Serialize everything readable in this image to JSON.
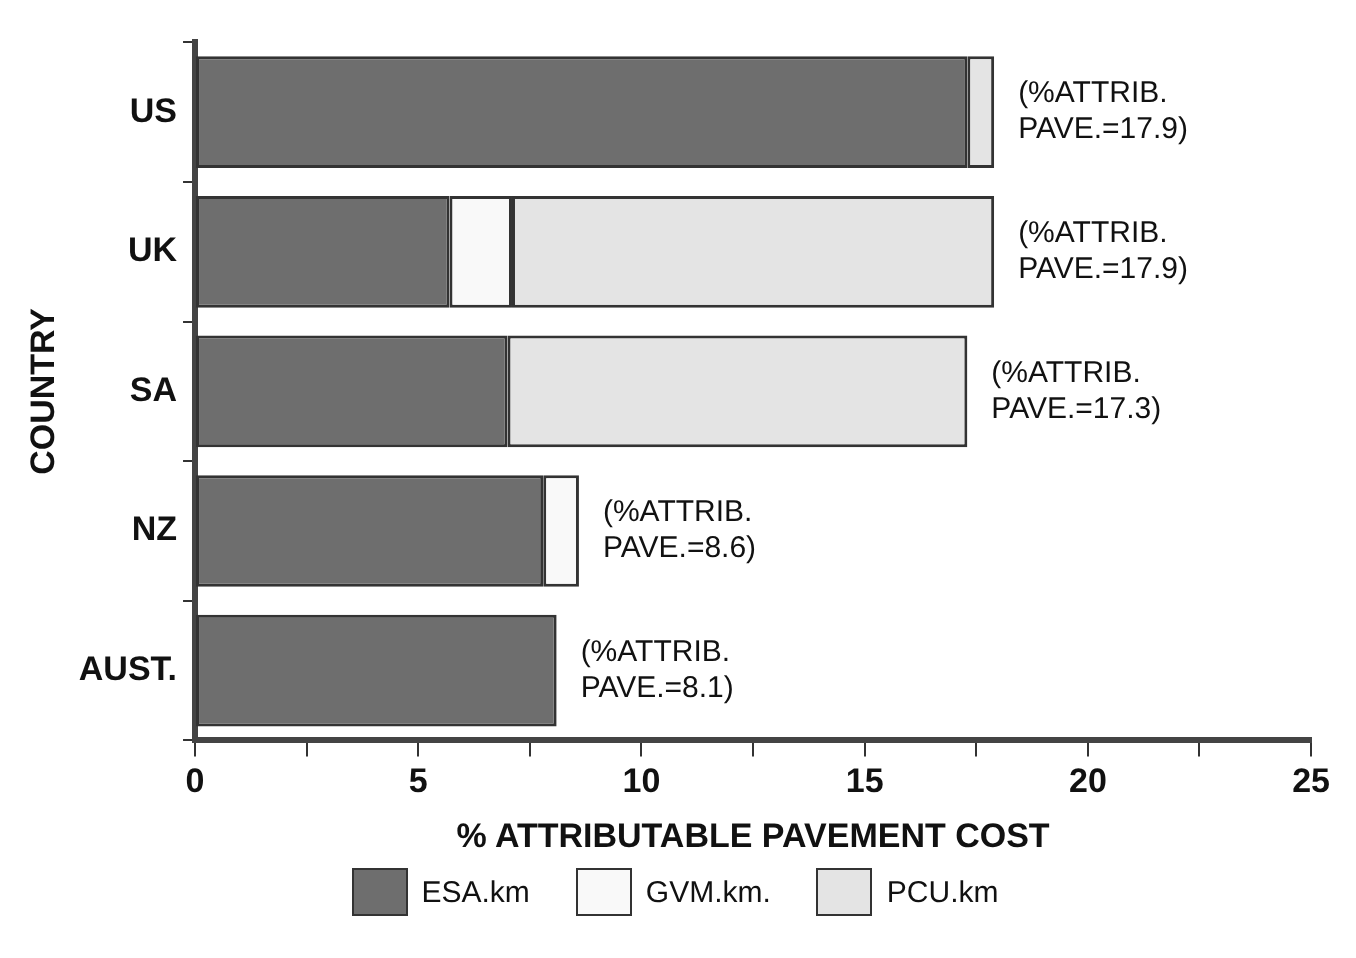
{
  "chart_data": {
    "type": "bar",
    "orientation": "horizontal",
    "stacked": true,
    "xlabel": "% ATTRIBUTABLE PAVEMENT COST",
    "ylabel": "COUNTRY",
    "categories": [
      "US",
      "UK",
      "SA",
      "NZ",
      "AUST."
    ],
    "series": [
      {
        "name": "ESA.km",
        "color": "#6e6e6e",
        "values": [
          17.3,
          5.7,
          7.0,
          7.8,
          8.1
        ]
      },
      {
        "name": "GVM.km.",
        "color": "#f9f9f9",
        "values": [
          0,
          1.4,
          0,
          0.8,
          0
        ]
      },
      {
        "name": "PCU.km",
        "color": "#e4e4e4",
        "values": [
          0.6,
          10.8,
          10.3,
          0,
          0
        ]
      }
    ],
    "totals": [
      "(%ATTRIB. PAVE.=17.9)",
      "(%ATTRIB. PAVE.=17.9)",
      "(%ATTRIB. PAVE.=17.3)",
      "(%ATTRIB. PAVE.=8.6)",
      "(%ATTRIB. PAVE.=8.1)"
    ],
    "xlim": [
      0,
      25
    ],
    "xticks": [
      0,
      {
        "value": 2.5,
        "label": null
      },
      5,
      {
        "value": 7.5,
        "label": null
      },
      10,
      {
        "value": 12.5,
        "label": null
      },
      15,
      {
        "value": 17.5,
        "label": null
      },
      20,
      {
        "value": 22.5,
        "label": null
      },
      25
    ],
    "grid": false,
    "legend": "bottom"
  }
}
